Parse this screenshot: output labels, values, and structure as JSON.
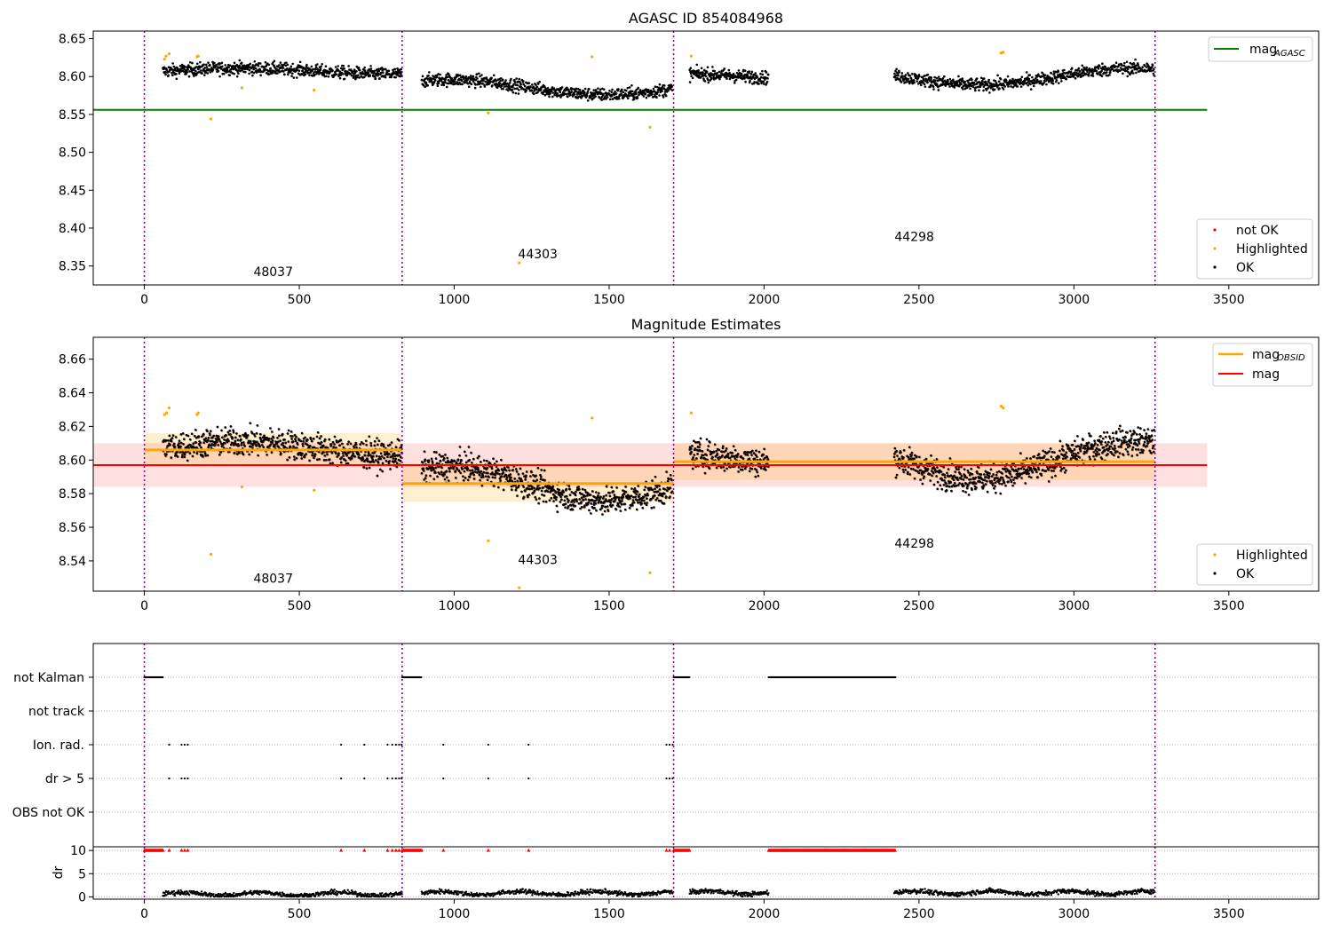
{
  "chart_data": [
    {
      "type": "scatter",
      "title": "AGASC ID 854084968",
      "xlim": [
        -165,
        3790
      ],
      "ylim": [
        8.325,
        8.66
      ],
      "x_ticks": [
        0,
        500,
        1000,
        1500,
        2000,
        2500,
        3000,
        3500
      ],
      "y_ticks": [
        8.35,
        8.4,
        8.45,
        8.5,
        8.55,
        8.6,
        8.65
      ],
      "y_tick_labels": [
        "8.35",
        "8.40",
        "8.45",
        "8.50",
        "8.55",
        "8.60",
        "8.65"
      ],
      "grid": false,
      "obsid_boundaries": [
        0,
        832,
        1708,
        3262
      ],
      "obsid_labels": [
        {
          "text": "48037",
          "x": 416,
          "y": 8.337
        },
        {
          "text": "44303",
          "x": 1270,
          "y": 8.36
        },
        {
          "text": "44298",
          "x": 2485,
          "y": 8.383
        }
      ],
      "reference_lines": [
        {
          "name": "mag_AGASC",
          "y": 8.556,
          "x_range": [
            -165,
            3430
          ],
          "color": "#008000"
        }
      ],
      "ok_segments": [
        {
          "x_start": 60,
          "x_end": 832,
          "base": 8.607,
          "amp": 0.004,
          "spread": 0.006
        },
        {
          "x_start": 895,
          "x_end": 1705,
          "base": 8.586,
          "amp": 0.01,
          "spread": 0.006
        },
        {
          "x_start": 1760,
          "x_end": 2015,
          "base": 8.6,
          "amp": 0.004,
          "spread": 0.006
        },
        {
          "x_start": 2420,
          "x_end": 3260,
          "base": 8.6,
          "amp": 0.011,
          "spread": 0.006
        }
      ],
      "highlighted_points": [
        {
          "x": 65,
          "y": 8.623
        },
        {
          "x": 70,
          "y": 8.627
        },
        {
          "x": 80,
          "y": 8.63
        },
        {
          "x": 170,
          "y": 8.626
        },
        {
          "x": 174,
          "y": 8.627
        },
        {
          "x": 215,
          "y": 8.544
        },
        {
          "x": 315,
          "y": 8.585
        },
        {
          "x": 548,
          "y": 8.582
        },
        {
          "x": 1110,
          "y": 8.552
        },
        {
          "x": 1210,
          "y": 8.354
        },
        {
          "x": 1445,
          "y": 8.626
        },
        {
          "x": 1632,
          "y": 8.533
        },
        {
          "x": 1765,
          "y": 8.627
        },
        {
          "x": 2765,
          "y": 8.631
        },
        {
          "x": 2772,
          "y": 8.632
        }
      ],
      "legend_lines": [
        {
          "label": "mag",
          "subscript": "AGASC",
          "color": "#008000"
        }
      ],
      "legend_markers": [
        {
          "label": "not OK",
          "color": "#ff0000"
        },
        {
          "label": "Highlighted",
          "color": "#ffa500"
        },
        {
          "label": "OK",
          "color": "#000000"
        }
      ]
    },
    {
      "type": "scatter",
      "title": "Magnitude Estimates",
      "xlim": [
        -165,
        3790
      ],
      "ylim": [
        8.522,
        8.673
      ],
      "x_ticks": [
        0,
        500,
        1000,
        1500,
        2000,
        2500,
        3000,
        3500
      ],
      "y_ticks": [
        8.54,
        8.56,
        8.58,
        8.6,
        8.62,
        8.64,
        8.66
      ],
      "y_tick_labels": [
        "8.54",
        "8.56",
        "8.58",
        "8.60",
        "8.62",
        "8.64",
        "8.66"
      ],
      "grid": false,
      "obsid_boundaries": [
        0,
        832,
        1708,
        3262
      ],
      "obsid_labels": [
        {
          "text": "48037",
          "x": 416,
          "y": 8.527
        },
        {
          "text": "44303",
          "x": 1270,
          "y": 8.538
        },
        {
          "text": "44298",
          "x": 2485,
          "y": 8.548
        }
      ],
      "mag": {
        "y": 8.597,
        "band": [
          8.584,
          8.61
        ],
        "x_range": [
          -165,
          3430
        ],
        "color": "#ff0000"
      },
      "mag_obsid": [
        {
          "x_range": [
            0,
            832
          ],
          "y": 8.606,
          "band": [
            8.596,
            8.616
          ]
        },
        {
          "x_range": [
            832,
            1708
          ],
          "y": 8.586,
          "band": [
            8.575,
            8.598
          ]
        },
        {
          "x_range": [
            1708,
            3262
          ],
          "y": 8.599,
          "band": [
            8.588,
            8.61
          ]
        }
      ],
      "ok_segments": [
        {
          "x_start": 60,
          "x_end": 832,
          "base": 8.607,
          "amp": 0.004,
          "spread": 0.006
        },
        {
          "x_start": 895,
          "x_end": 1705,
          "base": 8.586,
          "amp": 0.01,
          "spread": 0.006
        },
        {
          "x_start": 1760,
          "x_end": 2015,
          "base": 8.6,
          "amp": 0.004,
          "spread": 0.006
        },
        {
          "x_start": 2420,
          "x_end": 3260,
          "base": 8.6,
          "amp": 0.011,
          "spread": 0.006
        }
      ],
      "highlighted_points": [
        {
          "x": 65,
          "y": 8.627
        },
        {
          "x": 72,
          "y": 8.628
        },
        {
          "x": 80,
          "y": 8.631
        },
        {
          "x": 170,
          "y": 8.627
        },
        {
          "x": 174,
          "y": 8.628
        },
        {
          "x": 215,
          "y": 8.544
        },
        {
          "x": 315,
          "y": 8.584
        },
        {
          "x": 548,
          "y": 8.582
        },
        {
          "x": 1110,
          "y": 8.552
        },
        {
          "x": 1210,
          "y": 8.524
        },
        {
          "x": 1445,
          "y": 8.625
        },
        {
          "x": 1632,
          "y": 8.533
        },
        {
          "x": 1765,
          "y": 8.628
        },
        {
          "x": 2765,
          "y": 8.632
        },
        {
          "x": 2772,
          "y": 8.631
        }
      ],
      "legend_lines": [
        {
          "label": "mag",
          "subscript": "OBSID",
          "color": "#ffa500"
        },
        {
          "label": "mag",
          "subscript": "",
          "color": "#ff0000"
        }
      ],
      "legend_markers": [
        {
          "label": "Highlighted",
          "color": "#ffa500"
        },
        {
          "label": "OK",
          "color": "#000000"
        }
      ]
    },
    {
      "type": "scatter",
      "title": "",
      "xlim": [
        -165,
        3790
      ],
      "categories": [
        "not Kalman",
        "not track",
        "Ion. rad.",
        "dr > 5",
        "OBS not OK"
      ],
      "grid": true,
      "obsid_boundaries": [
        0,
        832,
        1708,
        3262
      ],
      "flag_ranges": [
        {
          "flag": "not Kalman",
          "ranges": [
            [
              0,
              60
            ],
            [
              832,
              895
            ],
            [
              1708,
              1760
            ],
            [
              2015,
              2425
            ]
          ]
        },
        {
          "flag": "not track",
          "ranges": []
        },
        {
          "flag": "Ion. rad.",
          "points": [
            80,
            120,
            130,
            140,
            635,
            710,
            785,
            800,
            812,
            822,
            830,
            965,
            1110,
            1240,
            1685,
            1695,
            1705
          ]
        },
        {
          "flag": "dr > 5",
          "points": [
            80,
            120,
            130,
            140,
            635,
            710,
            785,
            800,
            812,
            822,
            830,
            965,
            1110,
            1240,
            1685,
            1695,
            1705
          ]
        },
        {
          "flag": "OBS not OK",
          "ranges": []
        }
      ]
    },
    {
      "type": "scatter",
      "title": "",
      "xlim": [
        -165,
        3790
      ],
      "ylim": [
        -0.5,
        10.8
      ],
      "ylabel": "dr",
      "x_ticks": [
        0,
        500,
        1000,
        1500,
        2000,
        2500,
        3000,
        3500
      ],
      "y_ticks": [
        0,
        5,
        10
      ],
      "y_tick_labels": [
        "0",
        "5",
        "10"
      ],
      "grid": true,
      "obsid_boundaries": [
        0,
        832,
        1708,
        3262
      ],
      "ok_segments": [
        {
          "x_start": 60,
          "x_end": 832,
          "base": 0.6
        },
        {
          "x_start": 895,
          "x_end": 1705,
          "base": 0.8
        },
        {
          "x_start": 1760,
          "x_end": 2015,
          "base": 0.9
        },
        {
          "x_start": 2420,
          "x_end": 3260,
          "base": 0.9
        }
      ],
      "clipped_ranges": [
        [
          0,
          60
        ],
        [
          832,
          895
        ],
        [
          1708,
          1760
        ],
        [
          2015,
          2425
        ]
      ],
      "clipped_points": [
        80,
        120,
        130,
        140,
        635,
        710,
        785,
        800,
        812,
        822,
        965,
        1110,
        1240,
        1685,
        1695
      ],
      "clipped_value": 10,
      "clipped_color": "#ff0000"
    }
  ]
}
